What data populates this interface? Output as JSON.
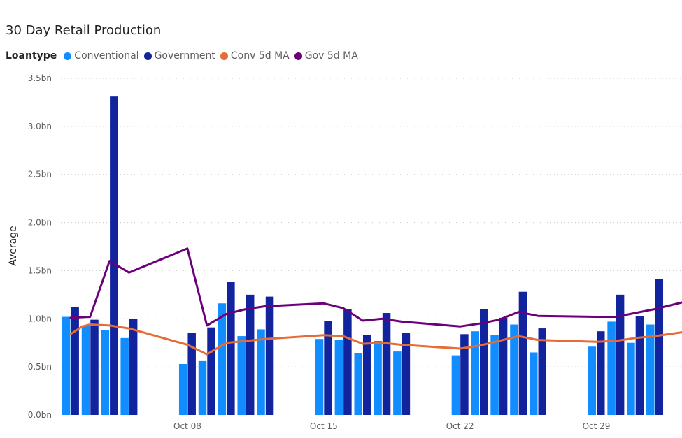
{
  "chart_data": {
    "type": "bar",
    "title": "30 Day Retail Production",
    "legend_title": "Loantype",
    "legend_position": "top-left",
    "ylabel": "Average",
    "xlabel": "",
    "ylim": [
      0,
      3.5
    ],
    "grid": true,
    "y_ticks": [
      "0.0bn",
      "0.5bn",
      "1.0bn",
      "1.5bn",
      "2.0bn",
      "2.5bn",
      "3.0bn",
      "3.5bn"
    ],
    "x_tick_labels": [
      {
        "label": "Oct 08",
        "day": 8
      },
      {
        "label": "Oct 15",
        "day": 15
      },
      {
        "label": "Oct 22",
        "day": 22
      },
      {
        "label": "Oct 29",
        "day": 29
      }
    ],
    "x_domain_days": [
      1.5,
      33.4
    ],
    "series": [
      {
        "name": "Conventional",
        "kind": "bar",
        "color": "#118DFF",
        "points": [
          {
            "day": 2,
            "value": 1.02
          },
          {
            "day": 3,
            "value": 0.93
          },
          {
            "day": 4,
            "value": 0.88
          },
          {
            "day": 5,
            "value": 0.8
          },
          {
            "day": 8,
            "value": 0.53
          },
          {
            "day": 9,
            "value": 0.56
          },
          {
            "day": 10,
            "value": 1.16
          },
          {
            "day": 11,
            "value": 0.82
          },
          {
            "day": 12,
            "value": 0.89
          },
          {
            "day": 15,
            "value": 0.79
          },
          {
            "day": 16,
            "value": 0.78
          },
          {
            "day": 17,
            "value": 0.64
          },
          {
            "day": 18,
            "value": 0.77
          },
          {
            "day": 19,
            "value": 0.66
          },
          {
            "day": 22,
            "value": 0.62
          },
          {
            "day": 23,
            "value": 0.87
          },
          {
            "day": 24,
            "value": 0.83
          },
          {
            "day": 25,
            "value": 0.94
          },
          {
            "day": 26,
            "value": 0.65
          },
          {
            "day": 29,
            "value": 0.71
          },
          {
            "day": 30,
            "value": 0.97
          },
          {
            "day": 31,
            "value": 0.75
          },
          {
            "day": 32,
            "value": 0.94
          }
        ]
      },
      {
        "name": "Government",
        "kind": "bar",
        "color": "#12239E",
        "points": [
          {
            "day": 2,
            "value": 1.12
          },
          {
            "day": 3,
            "value": 0.99
          },
          {
            "day": 4,
            "value": 3.31
          },
          {
            "day": 5,
            "value": 1.0
          },
          {
            "day": 8,
            "value": 0.85
          },
          {
            "day": 9,
            "value": 0.91
          },
          {
            "day": 10,
            "value": 1.38
          },
          {
            "day": 11,
            "value": 1.25
          },
          {
            "day": 12,
            "value": 1.23
          },
          {
            "day": 15,
            "value": 0.98
          },
          {
            "day": 16,
            "value": 1.1
          },
          {
            "day": 17,
            "value": 0.83
          },
          {
            "day": 18,
            "value": 1.06
          },
          {
            "day": 19,
            "value": 0.85
          },
          {
            "day": 22,
            "value": 0.84
          },
          {
            "day": 23,
            "value": 1.1
          },
          {
            "day": 24,
            "value": 1.01
          },
          {
            "day": 25,
            "value": 1.28
          },
          {
            "day": 26,
            "value": 0.9
          },
          {
            "day": 29,
            "value": 0.87
          },
          {
            "day": 30,
            "value": 1.25
          },
          {
            "day": 31,
            "value": 1.03
          },
          {
            "day": 32,
            "value": 1.41
          }
        ]
      },
      {
        "name": "Conv 5d MA",
        "kind": "line",
        "color": "#E66C37",
        "points": [
          {
            "day": 2,
            "value": 0.84
          },
          {
            "day": 2.6,
            "value": 0.92
          },
          {
            "day": 3,
            "value": 0.94
          },
          {
            "day": 4,
            "value": 0.93
          },
          {
            "day": 5,
            "value": 0.9
          },
          {
            "day": 8,
            "value": 0.73
          },
          {
            "day": 9,
            "value": 0.63
          },
          {
            "day": 10,
            "value": 0.75
          },
          {
            "day": 11,
            "value": 0.77
          },
          {
            "day": 12,
            "value": 0.79
          },
          {
            "day": 15,
            "value": 0.83
          },
          {
            "day": 16,
            "value": 0.82
          },
          {
            "day": 17,
            "value": 0.74
          },
          {
            "day": 18,
            "value": 0.75
          },
          {
            "day": 19,
            "value": 0.73
          },
          {
            "day": 22,
            "value": 0.69
          },
          {
            "day": 23,
            "value": 0.72
          },
          {
            "day": 24,
            "value": 0.77
          },
          {
            "day": 25,
            "value": 0.82
          },
          {
            "day": 26,
            "value": 0.78
          },
          {
            "day": 29,
            "value": 0.76
          },
          {
            "day": 30,
            "value": 0.77
          },
          {
            "day": 31,
            "value": 0.8
          },
          {
            "day": 32,
            "value": 0.82
          },
          {
            "day": 33.4,
            "value": 0.86
          }
        ]
      },
      {
        "name": "Gov 5d MA",
        "kind": "line",
        "color": "#6B007B",
        "points": [
          {
            "day": 2,
            "value": 1.01
          },
          {
            "day": 3,
            "value": 1.02
          },
          {
            "day": 4,
            "value": 1.6
          },
          {
            "day": 5,
            "value": 1.48
          },
          {
            "day": 8,
            "value": 1.73
          },
          {
            "day": 9,
            "value": 0.93
          },
          {
            "day": 10,
            "value": 1.05
          },
          {
            "day": 11,
            "value": 1.1
          },
          {
            "day": 12,
            "value": 1.13
          },
          {
            "day": 15,
            "value": 1.16
          },
          {
            "day": 16,
            "value": 1.11
          },
          {
            "day": 17,
            "value": 0.98
          },
          {
            "day": 18,
            "value": 1.0
          },
          {
            "day": 19,
            "value": 0.97
          },
          {
            "day": 22,
            "value": 0.92
          },
          {
            "day": 23,
            "value": 0.95
          },
          {
            "day": 24,
            "value": 0.99
          },
          {
            "day": 25,
            "value": 1.07
          },
          {
            "day": 26,
            "value": 1.03
          },
          {
            "day": 29,
            "value": 1.02
          },
          {
            "day": 30,
            "value": 1.02
          },
          {
            "day": 31,
            "value": 1.06
          },
          {
            "day": 32,
            "value": 1.1
          },
          {
            "day": 33.4,
            "value": 1.17
          }
        ]
      }
    ]
  }
}
